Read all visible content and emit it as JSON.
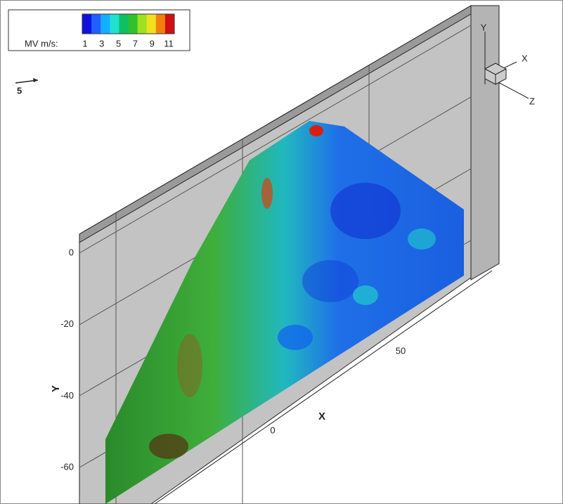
{
  "legend": {
    "title": "MV m/s:",
    "levels": [
      1,
      3,
      5,
      7,
      9,
      11
    ],
    "colors": [
      "#1010e0",
      "#1f60ff",
      "#14b0ff",
      "#20e0d0",
      "#10c060",
      "#30c030",
      "#a0e020",
      "#f0e020",
      "#f08010",
      "#d01010"
    ]
  },
  "reference_vector": {
    "label": "5"
  },
  "axes": {
    "x": {
      "label": "X",
      "ticks": [
        0,
        50
      ]
    },
    "y": {
      "label": "Y",
      "ticks": [
        0,
        -20,
        -40,
        -60
      ]
    }
  },
  "triad": {
    "x": "X",
    "y": "Y",
    "z": "Z"
  }
}
